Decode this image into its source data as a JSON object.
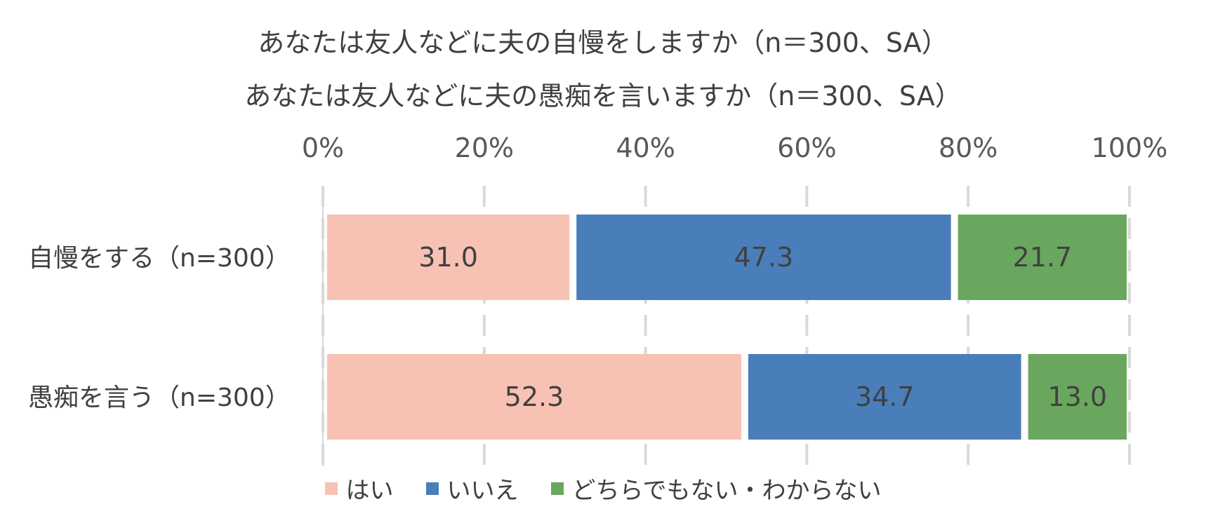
{
  "chart_data": {
    "type": "bar",
    "orientation": "horizontal",
    "stacked": "percent",
    "title": [
      "あなたは友人などに夫の自慢をしますか（n＝300、SA）",
      "あなたは友人などに夫の愚痴を言いますか（n＝300、SA）"
    ],
    "categories": [
      "自慢をする（n=300）",
      "愚痴を言う（n=300）"
    ],
    "series": [
      {
        "name": "はい",
        "color": "#F7C1B4",
        "values": [
          31.0,
          52.3
        ]
      },
      {
        "name": "いいえ",
        "color": "#4A7EBB",
        "values": [
          47.3,
          34.7
        ]
      },
      {
        "name": "どちらでもない・わからない",
        "color": "#6AA75E",
        "values": [
          21.7,
          13.0
        ]
      }
    ],
    "xlim": [
      0,
      100
    ],
    "xticks": [
      "0%",
      "20%",
      "40%",
      "60%",
      "80%",
      "100%"
    ],
    "grid": true,
    "legend_position": "bottom"
  }
}
